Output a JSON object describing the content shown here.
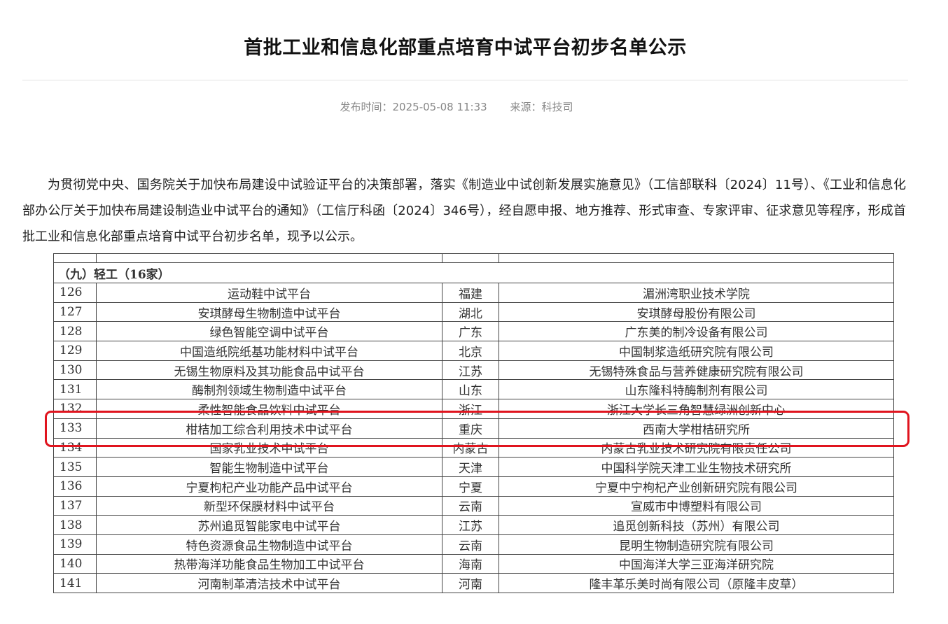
{
  "title": "首批工业和信息化部重点培育中试平台初步名单公示",
  "meta": {
    "published": "发布时间：2025-05-08 11:33",
    "source": "来源：科技司"
  },
  "paragraph": "为贯彻党中央、国务院关于加快布局建设中试验证平台的决策部署，落实《制造业中试创新发展实施意见》（工信部联科〔2024〕11号）、《工业和信息化部办公厅关于加快布局建设制造业中试平台的通知》（工信厅科函〔2024〕346号），经自愿申报、地方推荐、形式审查、专家评审、征求意见等程序，形成首批工业和信息化部重点培育中试平台初步名单，现予以公示。",
  "table": {
    "section": "（九）轻工（16家）",
    "rows": [
      {
        "no": "126",
        "name": "运动鞋中试平台",
        "province": "福建",
        "org": "湄洲湾职业技术学院"
      },
      {
        "no": "127",
        "name": "安琪酵母生物制造中试平台",
        "province": "湖北",
        "org": "安琪酵母股份有限公司"
      },
      {
        "no": "128",
        "name": "绿色智能空调中试平台",
        "province": "广东",
        "org": "广东美的制冷设备有限公司"
      },
      {
        "no": "129",
        "name": "中国造纸院纸基功能材料中试平台",
        "province": "北京",
        "org": "中国制浆造纸研究院有限公司"
      },
      {
        "no": "130",
        "name": "无锡生物原料及其功能食品中试平台",
        "province": "江苏",
        "org": "无锡特殊食品与营养健康研究院有限公司"
      },
      {
        "no": "131",
        "name": "酶制剂领域生物制造中试平台",
        "province": "山东",
        "org": "山东隆科特酶制剂有限公司"
      },
      {
        "no": "132",
        "name": "柔性智能食品饮料中试平台",
        "province": "浙江",
        "org": "浙江大学长三角智慧绿洲创新中心"
      },
      {
        "no": "133",
        "name": "柑桔加工综合利用技术中试平台",
        "province": "重庆",
        "org": "西南大学柑桔研究所"
      },
      {
        "no": "134",
        "name": "国家乳业技术中试平台",
        "province": "内蒙古",
        "org": "内蒙古乳业技术研究院有限责任公司"
      },
      {
        "no": "135",
        "name": "智能生物制造中试平台",
        "province": "天津",
        "org": "中国科学院天津工业生物技术研究所"
      },
      {
        "no": "136",
        "name": "宁夏枸杞产业功能产品中试平台",
        "province": "宁夏",
        "org": "宁夏中宁枸杞产业创新研究院有限公司"
      },
      {
        "no": "137",
        "name": "新型环保膜材料中试平台",
        "province": "云南",
        "org": "宣威市中博塑料有限公司"
      },
      {
        "no": "138",
        "name": "苏州追觅智能家电中试平台",
        "province": "江苏",
        "org": "追觅创新科技（苏州）有限公司"
      },
      {
        "no": "139",
        "name": "特色资源食品生物制造中试平台",
        "province": "云南",
        "org": "昆明生物制造研究院有限公司"
      },
      {
        "no": "140",
        "name": "热带海洋功能食品生物加工中试平台",
        "province": "海南",
        "org": "中国海洋大学三亚海洋研究院"
      },
      {
        "no": "141",
        "name": "河南制革清洁技术中试平台",
        "province": "河南",
        "org": "隆丰革乐美时尚有限公司（原隆丰皮草）"
      }
    ],
    "highlighted_row": "133",
    "highlight_color": "#e0141e"
  }
}
